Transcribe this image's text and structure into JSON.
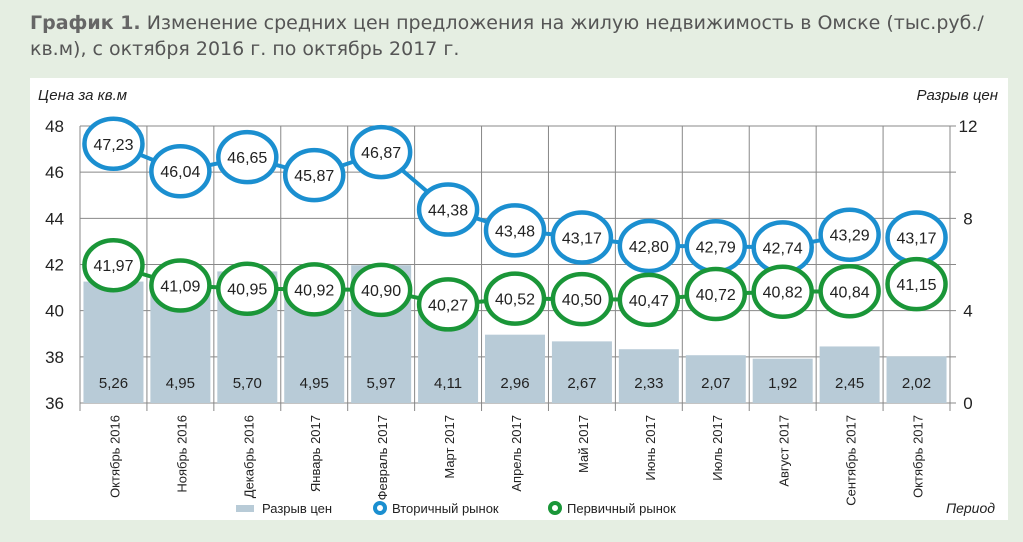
{
  "title_bold": "График 1.",
  "title_text": " Изменение средних цен предложения на жилую недвижимость в Омске (тыс.руб./кв.м), с октября 2016 г. по октябрь 2017 г.",
  "chart_data": {
    "type": "bar+line",
    "ylabel_left": "Цена за кв.м",
    "ylabel_right": "Разрыв цен",
    "xlabel": "Период",
    "ylim_left": [
      36,
      48
    ],
    "ylim_right": [
      0,
      12
    ],
    "yticks_left": [
      "36",
      "38",
      "40",
      "42",
      "44",
      "46",
      "48"
    ],
    "yticks_right": [
      "0",
      "4",
      "8",
      "12"
    ],
    "grid": true,
    "legend_placement": "bottom",
    "categories": [
      "Октябрь 2016",
      "Ноябрь 2016",
      "Декабрь 2016",
      "Январь 2017",
      "Февраль 2017",
      "Март 2017",
      "Апрель 2017",
      "Май 2017",
      "Июнь 2017",
      "Июль 2017",
      "Август 2017",
      "Сентябрь 2017",
      "Октябрь 2017"
    ],
    "series": [
      {
        "name": "Разрыв цен",
        "type": "bar",
        "axis": "right",
        "color": "#b8cbd7",
        "values": [
          5.26,
          4.95,
          5.7,
          4.95,
          5.97,
          4.11,
          2.96,
          2.67,
          2.33,
          2.07,
          1.92,
          2.45,
          2.02
        ],
        "labels": [
          "5,26",
          "4,95",
          "5,70",
          "4,95",
          "5,97",
          "4,11",
          "2,96",
          "2,67",
          "2,33",
          "2,07",
          "1,92",
          "2,45",
          "2,02"
        ]
      },
      {
        "name": "Вторичный рынок",
        "type": "line",
        "axis": "left",
        "color": "#1b8fd0",
        "values": [
          47.23,
          46.04,
          46.65,
          45.87,
          46.87,
          44.38,
          43.48,
          43.17,
          42.8,
          42.79,
          42.74,
          43.29,
          43.17
        ],
        "labels": [
          "47,23",
          "46,04",
          "46,65",
          "45,87",
          "46,87",
          "44,38",
          "43,48",
          "43,17",
          "42,80",
          "42,79",
          "42,74",
          "43,29",
          "43,17"
        ]
      },
      {
        "name": "Первичный рынок",
        "type": "line",
        "axis": "left",
        "color": "#1a9638",
        "values": [
          41.97,
          41.09,
          40.95,
          40.92,
          40.9,
          40.27,
          40.52,
          40.5,
          40.47,
          40.72,
          40.82,
          40.84,
          41.15
        ],
        "labels": [
          "41,97",
          "41,09",
          "40,95",
          "40,92",
          "40,90",
          "40,27",
          "40,52",
          "40,50",
          "40,47",
          "40,72",
          "40,82",
          "40,84",
          "41,15"
        ]
      }
    ]
  }
}
